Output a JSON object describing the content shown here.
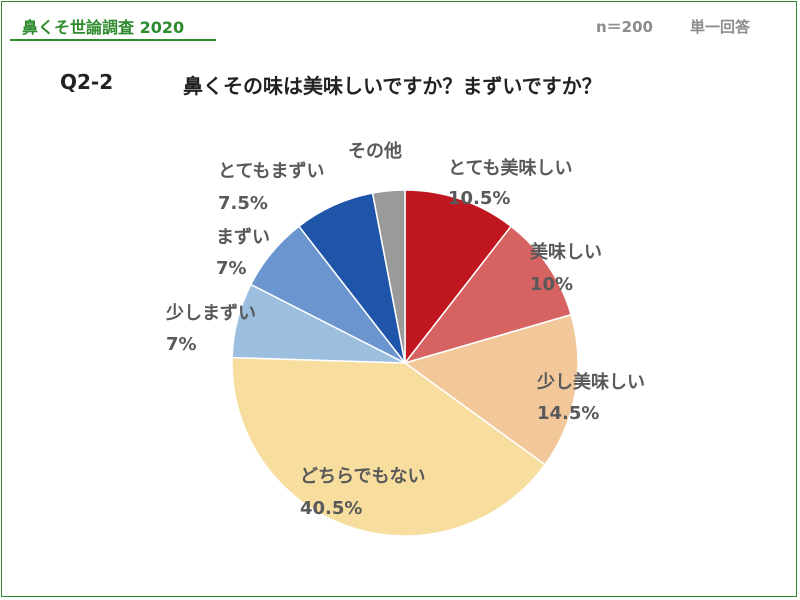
{
  "header": {
    "survey_title": "鼻くそ世論調査 2020",
    "sample_size": "n＝200",
    "answer_type": "単一回答"
  },
  "question": {
    "id": "Q2-2",
    "text": "鼻くその味は美味しいですか？まずいですか？"
  },
  "chart_data": {
    "type": "pie",
    "title": "",
    "start_angle_deg": 0,
    "direction": "clockwise",
    "slices": [
      {
        "label": "とても美味しい",
        "value": 10.5,
        "value_label": "10.5%",
        "color": "#c0161f",
        "text_color": "#ffffff"
      },
      {
        "label": "美味しい",
        "value": 10,
        "value_label": "10%",
        "color": "#d66262",
        "text_color": "#ffffff"
      },
      {
        "label": "少し美味しい",
        "value": 14.5,
        "value_label": "14.5%",
        "color": "#f2c89b",
        "text_color": "#595959"
      },
      {
        "label": "どちらでもない",
        "value": 40.5,
        "value_label": "40.5%",
        "color": "#f7de9f",
        "text_color": "#595959"
      },
      {
        "label": "少しまずい",
        "value": 7,
        "value_label": "7%",
        "color": "#9cbfe0",
        "text_color": "#595959"
      },
      {
        "label": "まずい",
        "value": 7,
        "value_label": "7%",
        "color": "#6a95cf",
        "text_color": "#595959"
      },
      {
        "label": "とてもまずい",
        "value": 7.5,
        "value_label": "7.5%",
        "color": "#1f55a8",
        "text_color": "#595959"
      },
      {
        "label": "その他",
        "value": 3,
        "value_label": "",
        "color": "#9a9a9a",
        "text_color": "#595959"
      }
    ]
  }
}
